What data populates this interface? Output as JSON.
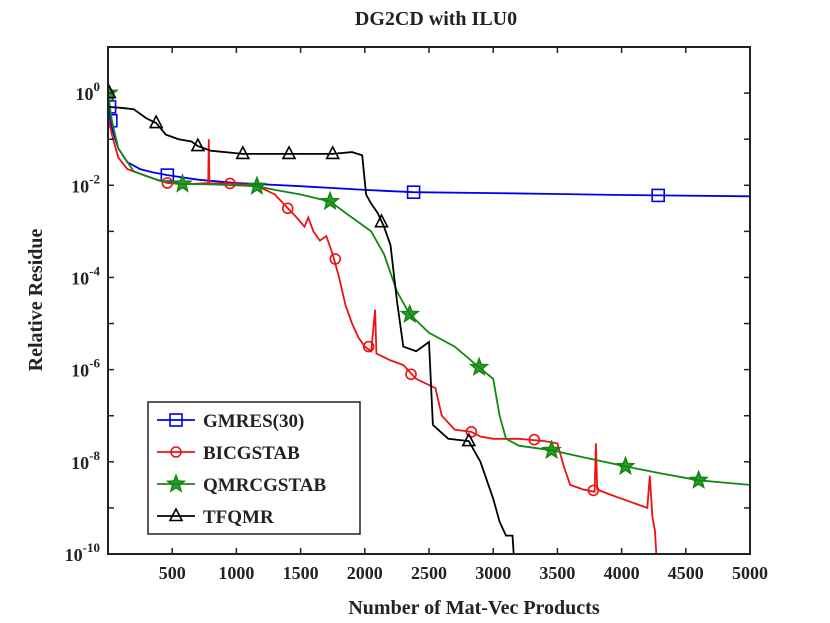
{
  "chart_data": {
    "type": "line",
    "title": "DG2CD with ILU0",
    "xlabel": "Number of Mat-Vec Products",
    "ylabel": "Relative Residue",
    "xlim": [
      0,
      5000
    ],
    "ylim_log10": [
      -10,
      1
    ],
    "y_scale": "log",
    "x_ticks": [
      500,
      1000,
      1500,
      2000,
      2500,
      3000,
      3500,
      4000,
      4500,
      5000
    ],
    "x_tick_labels": [
      "500",
      "1000",
      "1500",
      "2000",
      "2500",
      "3000",
      "3500",
      "4000",
      "4500",
      "5000"
    ],
    "y_ticks_log10": [
      0,
      -2,
      -4,
      -6,
      -8,
      -10
    ],
    "y_tick_labels": [
      {
        "base": "10",
        "exp": "0"
      },
      {
        "base": "10",
        "exp": "-2"
      },
      {
        "base": "10",
        "exp": "-4"
      },
      {
        "base": "10",
        "exp": "-6"
      },
      {
        "base": "10",
        "exp": "-8"
      },
      {
        "base": "10",
        "exp": "-10"
      }
    ],
    "legend_position": "bottom-left",
    "series": [
      {
        "name": "GMRES(30)",
        "color": "#0000ee",
        "marker": "square",
        "points": [
          [
            0,
            -0.25
          ],
          [
            10,
            -0.45
          ],
          [
            20,
            -0.6
          ],
          [
            40,
            -0.85
          ],
          [
            80,
            -1.2
          ],
          [
            150,
            -1.5
          ],
          [
            250,
            -1.65
          ],
          [
            350,
            -1.72
          ],
          [
            462,
            -1.78
          ],
          [
            700,
            -1.88
          ],
          [
            1000,
            -1.95
          ],
          [
            1500,
            -2.02
          ],
          [
            2000,
            -2.1
          ],
          [
            2380,
            -2.15
          ],
          [
            3000,
            -2.17
          ],
          [
            3500,
            -2.19
          ],
          [
            4000,
            -2.21
          ],
          [
            4285,
            -2.22
          ],
          [
            5000,
            -2.24
          ]
        ],
        "markers": [
          [
            12,
            -0.3
          ],
          [
            22,
            -0.6
          ],
          [
            462,
            -1.78
          ],
          [
            2380,
            -2.15
          ],
          [
            4285,
            -2.22
          ]
        ]
      },
      {
        "name": "BICGSTAB",
        "color": "#ee1111",
        "marker": "circle",
        "points": [
          [
            0,
            -0.5
          ],
          [
            30,
            -0.9
          ],
          [
            80,
            -1.4
          ],
          [
            150,
            -1.65
          ],
          [
            300,
            -1.8
          ],
          [
            462,
            -1.95
          ],
          [
            600,
            -1.98
          ],
          [
            780,
            -1.95
          ],
          [
            785,
            -1.0
          ],
          [
            790,
            -1.96
          ],
          [
            950,
            -1.96
          ],
          [
            1150,
            -2.0
          ],
          [
            1300,
            -2.2
          ],
          [
            1350,
            -2.35
          ],
          [
            1400,
            -2.5
          ],
          [
            1470,
            -2.7
          ],
          [
            1530,
            -2.9
          ],
          [
            1560,
            -2.7
          ],
          [
            1600,
            -3.0
          ],
          [
            1650,
            -3.2
          ],
          [
            1700,
            -3.1
          ],
          [
            1750,
            -3.5
          ],
          [
            1800,
            -4.0
          ],
          [
            1850,
            -4.6
          ],
          [
            1900,
            -5.0
          ],
          [
            1950,
            -5.3
          ],
          [
            2000,
            -5.5
          ],
          [
            2050,
            -5.6
          ],
          [
            2080,
            -4.7
          ],
          [
            2090,
            -5.65
          ],
          [
            2200,
            -5.8
          ],
          [
            2300,
            -5.9
          ],
          [
            2400,
            -6.2
          ],
          [
            2550,
            -6.4
          ],
          [
            2600,
            -7.0
          ],
          [
            2700,
            -7.3
          ],
          [
            2830,
            -7.35
          ],
          [
            2900,
            -7.45
          ],
          [
            3000,
            -7.5
          ],
          [
            3200,
            -7.5
          ],
          [
            3400,
            -7.55
          ],
          [
            3500,
            -7.6
          ],
          [
            3550,
            -8.1
          ],
          [
            3600,
            -8.5
          ],
          [
            3700,
            -8.6
          ],
          [
            3790,
            -8.65
          ],
          [
            3800,
            -7.6
          ],
          [
            3810,
            -8.6
          ],
          [
            3900,
            -8.7
          ],
          [
            4000,
            -8.8
          ],
          [
            4100,
            -8.9
          ],
          [
            4200,
            -9.0
          ],
          [
            4220,
            -8.3
          ],
          [
            4240,
            -9.2
          ],
          [
            4260,
            -9.5
          ],
          [
            4270,
            -10.0
          ]
        ],
        "markers": [
          [
            462,
            -1.95
          ],
          [
            950,
            -1.96
          ],
          [
            1400,
            -2.5
          ],
          [
            1770,
            -3.6
          ],
          [
            2030,
            -5.5
          ],
          [
            2360,
            -6.1
          ],
          [
            2830,
            -7.35
          ],
          [
            3320,
            -7.52
          ],
          [
            3780,
            -8.62
          ]
        ]
      },
      {
        "name": "QMRCGSTAB",
        "color": "#118811",
        "marker": "star",
        "points": [
          [
            0,
            0
          ],
          [
            30,
            -0.6
          ],
          [
            80,
            -1.2
          ],
          [
            200,
            -1.7
          ],
          [
            400,
            -1.9
          ],
          [
            580,
            -1.97
          ],
          [
            800,
            -1.98
          ],
          [
            1160,
            -2.02
          ],
          [
            1300,
            -2.1
          ],
          [
            1500,
            -2.2
          ],
          [
            1650,
            -2.3
          ],
          [
            1730,
            -2.35
          ],
          [
            1850,
            -2.6
          ],
          [
            1950,
            -2.8
          ],
          [
            2050,
            -3.0
          ],
          [
            2150,
            -3.5
          ],
          [
            2250,
            -4.3
          ],
          [
            2350,
            -4.8
          ],
          [
            2500,
            -5.2
          ],
          [
            2700,
            -5.5
          ],
          [
            2890,
            -5.95
          ],
          [
            3000,
            -6.2
          ],
          [
            3050,
            -7.0
          ],
          [
            3100,
            -7.5
          ],
          [
            3200,
            -7.65
          ],
          [
            3455,
            -7.75
          ],
          [
            3700,
            -7.9
          ],
          [
            4030,
            -8.1
          ],
          [
            4300,
            -8.25
          ],
          [
            4600,
            -8.4
          ],
          [
            4800,
            -8.45
          ],
          [
            5000,
            -8.5
          ]
        ],
        "markers": [
          [
            5,
            0
          ],
          [
            580,
            -1.97
          ],
          [
            1160,
            -2.02
          ],
          [
            1730,
            -2.35
          ],
          [
            2350,
            -4.8
          ],
          [
            2890,
            -5.95
          ],
          [
            3455,
            -7.75
          ],
          [
            4030,
            -8.1
          ],
          [
            4600,
            -8.4
          ]
        ]
      },
      {
        "name": "TFQMR",
        "color": "#000000",
        "marker": "triangle",
        "points": [
          [
            0,
            -0.3
          ],
          [
            100,
            -0.32
          ],
          [
            200,
            -0.35
          ],
          [
            300,
            -0.55
          ],
          [
            375,
            -0.65
          ],
          [
            450,
            -0.9
          ],
          [
            550,
            -1.0
          ],
          [
            650,
            -1.05
          ],
          [
            700,
            -1.15
          ],
          [
            800,
            -1.25
          ],
          [
            1050,
            -1.32
          ],
          [
            1300,
            -1.32
          ],
          [
            1410,
            -1.32
          ],
          [
            1600,
            -1.32
          ],
          [
            1750,
            -1.32
          ],
          [
            1900,
            -1.28
          ],
          [
            1980,
            -1.35
          ],
          [
            2010,
            -2.2
          ],
          [
            2050,
            -2.4
          ],
          [
            2100,
            -2.6
          ],
          [
            2150,
            -2.9
          ],
          [
            2200,
            -3.3
          ],
          [
            2250,
            -4.5
          ],
          [
            2300,
            -5.5
          ],
          [
            2400,
            -5.6
          ],
          [
            2450,
            -5.5
          ],
          [
            2500,
            -5.4
          ],
          [
            2530,
            -7.2
          ],
          [
            2650,
            -7.5
          ],
          [
            2810,
            -7.55
          ],
          [
            2900,
            -8.0
          ],
          [
            3000,
            -8.8
          ],
          [
            3050,
            -9.3
          ],
          [
            3100,
            -9.6
          ],
          [
            3150,
            -9.6
          ],
          [
            3160,
            -10.0
          ]
        ],
        "markers": [
          [
            10,
            0
          ],
          [
            375,
            -0.65
          ],
          [
            700,
            -1.15
          ],
          [
            1050,
            -1.32
          ],
          [
            1410,
            -1.32
          ],
          [
            1750,
            -1.32
          ],
          [
            2130,
            -2.8
          ],
          [
            2810,
            -7.55
          ]
        ]
      }
    ]
  }
}
